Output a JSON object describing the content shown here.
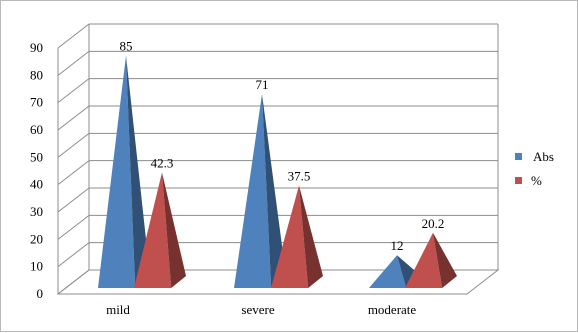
{
  "chart_data": {
    "type": "bar",
    "style": "3d-pyramid",
    "categories": [
      "mild",
      "severe",
      "moderate"
    ],
    "series": [
      {
        "name": "Abs",
        "values": [
          85,
          71,
          12
        ],
        "color": "#4f81bd"
      },
      {
        "name": "%",
        "values": [
          42.3,
          37.5,
          20.2
        ],
        "color": "#c0504d"
      }
    ],
    "data_labels": [
      [
        "85",
        "71",
        "12"
      ],
      [
        "42.3",
        "37.5",
        "20.2"
      ]
    ],
    "ylim": [
      0,
      90
    ],
    "yticks": [
      "0",
      "10",
      "20",
      "30",
      "40",
      "50",
      "60",
      "70",
      "80",
      "90"
    ],
    "grid": true,
    "legend_position": "right"
  }
}
